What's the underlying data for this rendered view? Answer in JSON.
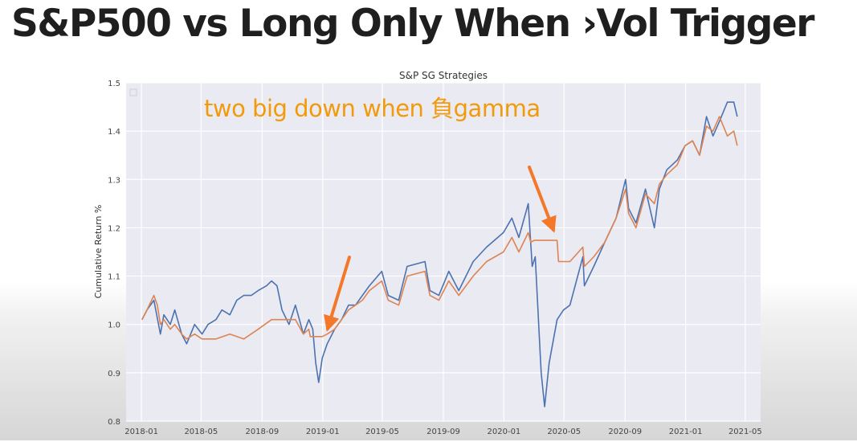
{
  "slide": {
    "title": "S&P500 vs Long Only When ›Vol Trigger"
  },
  "chart_data": {
    "type": "line",
    "title": "S&P SG Strategies",
    "xlabel": "",
    "ylabel": "Cumulative Return %",
    "ylim": [
      0.8,
      1.5
    ],
    "yticks": [
      0.8,
      0.9,
      1.0,
      1.1,
      1.2,
      1.3,
      1.4,
      1.5
    ],
    "xlim": [
      "2017-12-01",
      "2021-06-01"
    ],
    "xticks": [
      "2018-01",
      "2018-05",
      "2018-09",
      "2019-01",
      "2019-05",
      "2019-09",
      "2020-01",
      "2020-05",
      "2020-09",
      "2021-01",
      "2021-05"
    ],
    "grid": true,
    "legend": "none",
    "series": [
      {
        "color": "#4C72B0",
        "points": [
          [
            "2018-01-02",
            1.01
          ],
          [
            "2018-01-12",
            1.03
          ],
          [
            "2018-01-26",
            1.05
          ],
          [
            "2018-02-08",
            0.98
          ],
          [
            "2018-02-15",
            1.02
          ],
          [
            "2018-02-28",
            1.0
          ],
          [
            "2018-03-09",
            1.03
          ],
          [
            "2018-03-23",
            0.98
          ],
          [
            "2018-04-02",
            0.96
          ],
          [
            "2018-04-18",
            1.0
          ],
          [
            "2018-05-03",
            0.98
          ],
          [
            "2018-05-15",
            1.0
          ],
          [
            "2018-05-31",
            1.01
          ],
          [
            "2018-06-12",
            1.03
          ],
          [
            "2018-06-28",
            1.02
          ],
          [
            "2018-07-12",
            1.05
          ],
          [
            "2018-07-26",
            1.06
          ],
          [
            "2018-08-10",
            1.06
          ],
          [
            "2018-08-24",
            1.07
          ],
          [
            "2018-09-10",
            1.08
          ],
          [
            "2018-09-20",
            1.09
          ],
          [
            "2018-10-01",
            1.08
          ],
          [
            "2018-10-11",
            1.03
          ],
          [
            "2018-10-25",
            1.0
          ],
          [
            "2018-11-07",
            1.04
          ],
          [
            "2018-11-23",
            0.98
          ],
          [
            "2018-12-04",
            1.01
          ],
          [
            "2018-12-12",
            0.99
          ],
          [
            "2018-12-18",
            0.92
          ],
          [
            "2018-12-24",
            0.88
          ],
          [
            "2018-12-31",
            0.93
          ],
          [
            "2019-01-10",
            0.96
          ],
          [
            "2019-01-25",
            0.99
          ],
          [
            "2019-02-08",
            1.01
          ],
          [
            "2019-02-22",
            1.04
          ],
          [
            "2019-03-08",
            1.04
          ],
          [
            "2019-03-22",
            1.06
          ],
          [
            "2019-04-05",
            1.08
          ],
          [
            "2019-04-30",
            1.11
          ],
          [
            "2019-05-13",
            1.06
          ],
          [
            "2019-06-03",
            1.05
          ],
          [
            "2019-06-20",
            1.12
          ],
          [
            "2019-07-26",
            1.13
          ],
          [
            "2019-08-05",
            1.07
          ],
          [
            "2019-08-23",
            1.06
          ],
          [
            "2019-09-12",
            1.11
          ],
          [
            "2019-10-02",
            1.07
          ],
          [
            "2019-10-31",
            1.13
          ],
          [
            "2019-11-27",
            1.16
          ],
          [
            "2019-12-31",
            1.19
          ],
          [
            "2020-01-17",
            1.22
          ],
          [
            "2020-01-31",
            1.18
          ],
          [
            "2020-02-19",
            1.25
          ],
          [
            "2020-02-27",
            1.12
          ],
          [
            "2020-03-04",
            1.14
          ],
          [
            "2020-03-12",
            0.98
          ],
          [
            "2020-03-16",
            0.9
          ],
          [
            "2020-03-23",
            0.83
          ],
          [
            "2020-04-01",
            0.92
          ],
          [
            "2020-04-17",
            1.01
          ],
          [
            "2020-04-30",
            1.03
          ],
          [
            "2020-05-13",
            1.04
          ],
          [
            "2020-06-08",
            1.14
          ],
          [
            "2020-06-11",
            1.08
          ],
          [
            "2020-06-30",
            1.12
          ],
          [
            "2020-07-22",
            1.17
          ],
          [
            "2020-08-14",
            1.22
          ],
          [
            "2020-09-02",
            1.3
          ],
          [
            "2020-09-08",
            1.24
          ],
          [
            "2020-09-23",
            1.21
          ],
          [
            "2020-10-12",
            1.28
          ],
          [
            "2020-10-30",
            1.2
          ],
          [
            "2020-11-09",
            1.28
          ],
          [
            "2020-11-24",
            1.32
          ],
          [
            "2020-12-15",
            1.34
          ],
          [
            "2020-12-31",
            1.37
          ],
          [
            "2021-01-15",
            1.38
          ],
          [
            "2021-01-29",
            1.35
          ],
          [
            "2021-02-12",
            1.43
          ],
          [
            "2021-02-25",
            1.39
          ],
          [
            "2021-03-10",
            1.42
          ],
          [
            "2021-03-26",
            1.46
          ],
          [
            "2021-04-08",
            1.46
          ],
          [
            "2021-04-15",
            1.43
          ]
        ]
      },
      {
        "color": "#DD8452",
        "points": [
          [
            "2018-01-02",
            1.01
          ],
          [
            "2018-01-12",
            1.03
          ],
          [
            "2018-01-26",
            1.06
          ],
          [
            "2018-02-02",
            1.04
          ],
          [
            "2018-02-08",
            1.0
          ],
          [
            "2018-02-15",
            1.01
          ],
          [
            "2018-02-28",
            0.99
          ],
          [
            "2018-03-09",
            1.0
          ],
          [
            "2018-03-23",
            0.98
          ],
          [
            "2018-04-02",
            0.97
          ],
          [
            "2018-04-18",
            0.98
          ],
          [
            "2018-05-03",
            0.97
          ],
          [
            "2018-05-31",
            0.97
          ],
          [
            "2018-06-28",
            0.98
          ],
          [
            "2018-07-26",
            0.97
          ],
          [
            "2018-08-24",
            0.99
          ],
          [
            "2018-09-20",
            1.01
          ],
          [
            "2018-10-01",
            1.01
          ],
          [
            "2018-10-11",
            1.01
          ],
          [
            "2018-10-25",
            1.01
          ],
          [
            "2018-11-07",
            1.01
          ],
          [
            "2018-11-23",
            0.98
          ],
          [
            "2018-12-04",
            0.99
          ],
          [
            "2018-12-07",
            0.975
          ],
          [
            "2018-12-31",
            0.975
          ],
          [
            "2019-01-10",
            0.98
          ],
          [
            "2019-01-25",
            0.99
          ],
          [
            "2019-02-08",
            1.01
          ],
          [
            "2019-02-22",
            1.03
          ],
          [
            "2019-03-08",
            1.04
          ],
          [
            "2019-03-22",
            1.05
          ],
          [
            "2019-04-05",
            1.07
          ],
          [
            "2019-04-30",
            1.09
          ],
          [
            "2019-05-13",
            1.05
          ],
          [
            "2019-06-03",
            1.04
          ],
          [
            "2019-06-20",
            1.1
          ],
          [
            "2019-07-26",
            1.11
          ],
          [
            "2019-08-05",
            1.06
          ],
          [
            "2019-08-23",
            1.05
          ],
          [
            "2019-09-12",
            1.09
          ],
          [
            "2019-10-02",
            1.06
          ],
          [
            "2019-10-31",
            1.1
          ],
          [
            "2019-11-27",
            1.13
          ],
          [
            "2019-12-31",
            1.15
          ],
          [
            "2020-01-17",
            1.18
          ],
          [
            "2020-01-31",
            1.15
          ],
          [
            "2020-02-19",
            1.19
          ],
          [
            "2020-02-24",
            1.17
          ],
          [
            "2020-03-02",
            1.174
          ],
          [
            "2020-04-17",
            1.174
          ],
          [
            "2020-04-20",
            1.13
          ],
          [
            "2020-05-13",
            1.13
          ],
          [
            "2020-06-08",
            1.16
          ],
          [
            "2020-06-11",
            1.12
          ],
          [
            "2020-06-30",
            1.14
          ],
          [
            "2020-07-22",
            1.17
          ],
          [
            "2020-08-14",
            1.22
          ],
          [
            "2020-09-02",
            1.28
          ],
          [
            "2020-09-08",
            1.23
          ],
          [
            "2020-09-23",
            1.2
          ],
          [
            "2020-10-12",
            1.27
          ],
          [
            "2020-10-30",
            1.25
          ],
          [
            "2020-11-09",
            1.29
          ],
          [
            "2020-11-24",
            1.31
          ],
          [
            "2020-12-15",
            1.33
          ],
          [
            "2020-12-31",
            1.37
          ],
          [
            "2021-01-15",
            1.38
          ],
          [
            "2021-01-29",
            1.35
          ],
          [
            "2021-02-12",
            1.41
          ],
          [
            "2021-02-25",
            1.4
          ],
          [
            "2021-03-10",
            1.43
          ],
          [
            "2021-03-26",
            1.39
          ],
          [
            "2021-04-08",
            1.4
          ],
          [
            "2021-04-15",
            1.37
          ]
        ]
      }
    ],
    "annotations": [
      {
        "text": "two big down when 負gamma",
        "color": "#F39A0B"
      }
    ]
  }
}
